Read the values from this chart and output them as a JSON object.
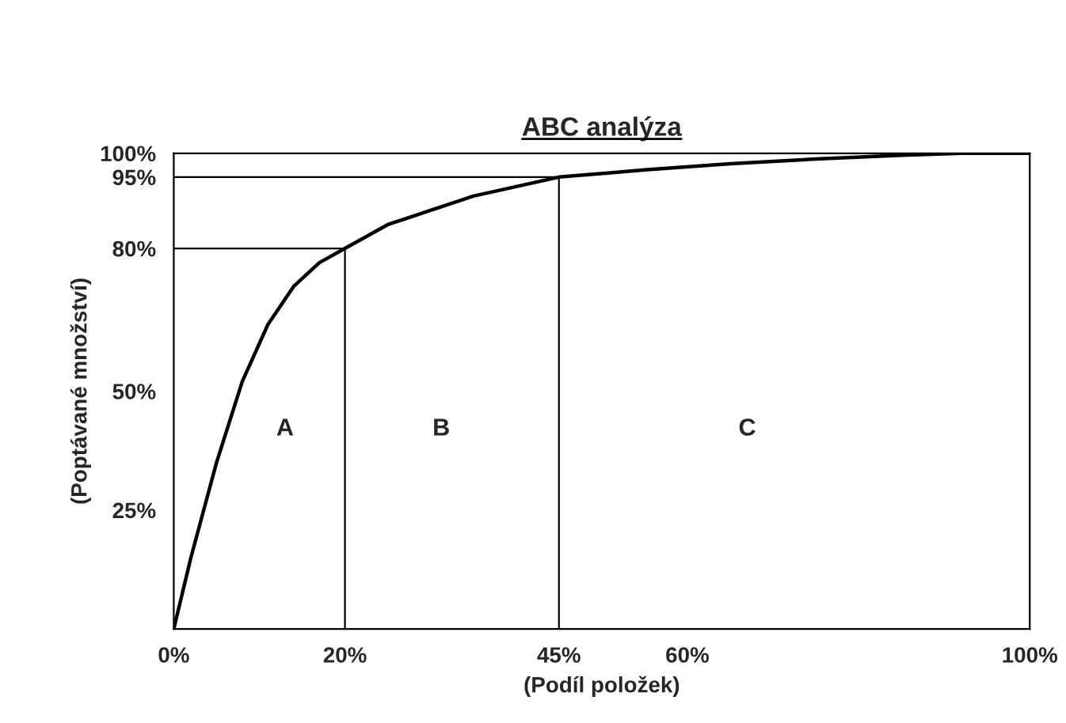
{
  "chart_data": {
    "type": "line",
    "title": "ABC analýza",
    "xlabel": "(Podíl položek)",
    "ylabel": "(Poptávané množství)",
    "x": [
      0,
      2,
      5,
      8,
      11,
      14,
      17,
      20,
      25,
      30,
      35,
      40,
      45,
      55,
      65,
      75,
      85,
      92,
      100
    ],
    "series": [
      {
        "color": "#000000",
        "values": [
          0,
          15,
          35,
          52,
          64,
          72,
          77,
          80,
          85,
          88,
          91,
          93,
          95,
          96.5,
          97.8,
          98.8,
          99.6,
          100,
          100
        ]
      }
    ],
    "xlim": [
      0,
      100
    ],
    "ylim": [
      0,
      100
    ],
    "xticks": [
      {
        "value": 0,
        "label": "0%"
      },
      {
        "value": 20,
        "label": "20%"
      },
      {
        "value": 45,
        "label": "45%"
      },
      {
        "value": 60,
        "label": "60%"
      },
      {
        "value": 100,
        "label": "100%"
      }
    ],
    "yticks": [
      {
        "value": 25,
        "label": "25%"
      },
      {
        "value": 50,
        "label": "50%"
      },
      {
        "value": 80,
        "label": "80%"
      },
      {
        "value": 95,
        "label": "95%"
      },
      {
        "value": 100,
        "label": "100%"
      }
    ],
    "ref_lines": [
      {
        "axis": "x",
        "value": 20
      },
      {
        "axis": "x",
        "value": 45
      },
      {
        "axis": "y",
        "value": 80
      },
      {
        "axis": "y",
        "value": 95
      }
    ],
    "annotations": [
      "A",
      "B",
      "C"
    ],
    "grid": false,
    "legend": false,
    "marker": "none",
    "line_style": "solid"
  }
}
